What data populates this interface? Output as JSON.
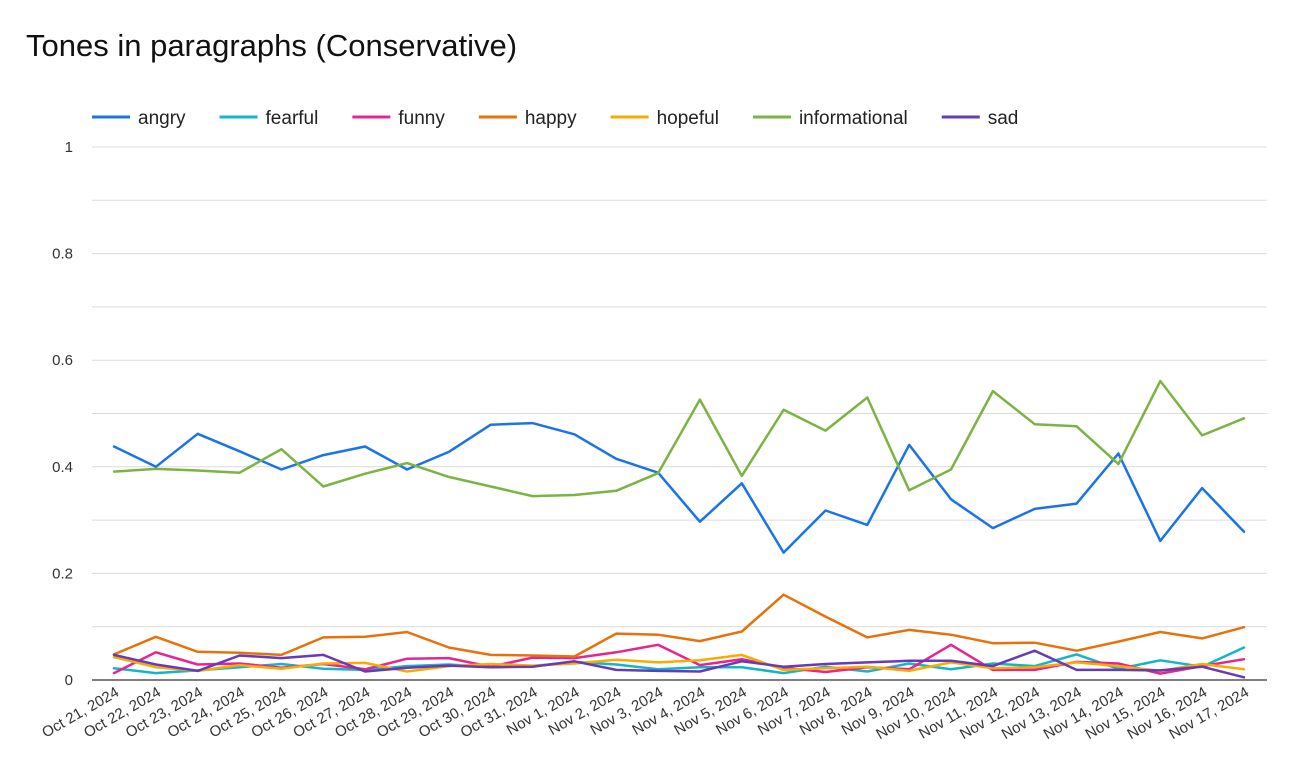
{
  "chart_data": {
    "type": "line",
    "title": "Tones in paragraphs (Conservative)",
    "xlabel": "",
    "ylabel": "",
    "ylim": [
      0,
      1
    ],
    "yticks": [
      "0",
      "0.2",
      "0.4",
      "0.6",
      "0.8",
      "1"
    ],
    "grid": true,
    "legend_position": "top",
    "categories": [
      "Oct 21, 2024",
      "Oct 22, 2024",
      "Oct 23, 2024",
      "Oct 24, 2024",
      "Oct 25, 2024",
      "Oct 26, 2024",
      "Oct 27, 2024",
      "Oct 28, 2024",
      "Oct 29, 2024",
      "Oct 30, 2024",
      "Oct 31, 2024",
      "Nov 1, 2024",
      "Nov 2, 2024",
      "Nov 3, 2024",
      "Nov 4, 2024",
      "Nov 5, 2024",
      "Nov 6, 2024",
      "Nov 7, 2024",
      "Nov 8, 2024",
      "Nov 9, 2024",
      "Nov 10, 2024",
      "Nov 11, 2024",
      "Nov 12, 2024",
      "Nov 13, 2024",
      "Nov 14, 2024",
      "Nov 15, 2024",
      "Nov 16, 2024",
      "Nov 17, 2024"
    ],
    "series": [
      {
        "name": "angry",
        "color": "#1a73e8",
        "values": [
          0.438,
          0.4,
          0.462,
          0.429,
          0.395,
          0.422,
          0.438,
          0.395,
          0.428,
          0.479,
          0.482,
          0.461,
          0.415,
          0.389,
          0.297,
          0.369,
          0.239,
          0.318,
          0.291,
          0.441,
          0.339,
          0.285,
          0.321,
          0.331,
          0.425,
          0.261,
          0.36,
          0.278
        ]
      },
      {
        "name": "fearful",
        "color": "#12b5cb",
        "values": [
          0.022,
          0.013,
          0.018,
          0.024,
          0.03,
          0.021,
          0.019,
          0.026,
          0.029,
          0.024,
          0.026,
          0.034,
          0.029,
          0.02,
          0.024,
          0.024,
          0.013,
          0.025,
          0.016,
          0.031,
          0.02,
          0.031,
          0.026,
          0.048,
          0.021,
          0.037,
          0.025,
          0.061
        ]
      },
      {
        "name": "funny",
        "color": "#e52592",
        "values": [
          0.013,
          0.052,
          0.029,
          0.031,
          0.023,
          0.03,
          0.02,
          0.04,
          0.041,
          0.025,
          0.042,
          0.041,
          0.052,
          0.066,
          0.028,
          0.039,
          0.023,
          0.015,
          0.024,
          0.02,
          0.066,
          0.019,
          0.019,
          0.034,
          0.031,
          0.012,
          0.026,
          0.039
        ]
      },
      {
        "name": "happy",
        "color": "#e8710a",
        "values": [
          0.048,
          0.081,
          0.053,
          0.051,
          0.047,
          0.08,
          0.081,
          0.09,
          0.061,
          0.047,
          0.046,
          0.044,
          0.087,
          0.085,
          0.073,
          0.091,
          0.16,
          0.119,
          0.08,
          0.094,
          0.085,
          0.069,
          0.07,
          0.055,
          0.072,
          0.09,
          0.078,
          0.099
        ]
      },
      {
        "name": "hopeful",
        "color": "#f9ab00",
        "values": [
          0.043,
          0.024,
          0.017,
          0.028,
          0.021,
          0.031,
          0.032,
          0.016,
          0.026,
          0.03,
          0.027,
          0.031,
          0.038,
          0.033,
          0.037,
          0.047,
          0.019,
          0.022,
          0.025,
          0.017,
          0.033,
          0.022,
          0.024,
          0.033,
          0.026,
          0.017,
          0.03,
          0.02
        ]
      },
      {
        "name": "informational",
        "color": "#7cb342",
        "values": [
          0.391,
          0.396,
          0.393,
          0.389,
          0.433,
          0.363,
          0.387,
          0.407,
          0.381,
          0.363,
          0.345,
          0.347,
          0.355,
          0.388,
          0.526,
          0.383,
          0.507,
          0.468,
          0.53,
          0.356,
          0.395,
          0.542,
          0.48,
          0.476,
          0.405,
          0.561,
          0.459,
          0.491
        ]
      },
      {
        "name": "sad",
        "color": "#673ab7",
        "values": [
          0.047,
          0.029,
          0.017,
          0.046,
          0.041,
          0.047,
          0.016,
          0.023,
          0.027,
          0.024,
          0.025,
          0.035,
          0.019,
          0.017,
          0.016,
          0.035,
          0.025,
          0.03,
          0.033,
          0.036,
          0.036,
          0.026,
          0.055,
          0.019,
          0.019,
          0.018,
          0.025,
          0.005
        ]
      }
    ]
  }
}
